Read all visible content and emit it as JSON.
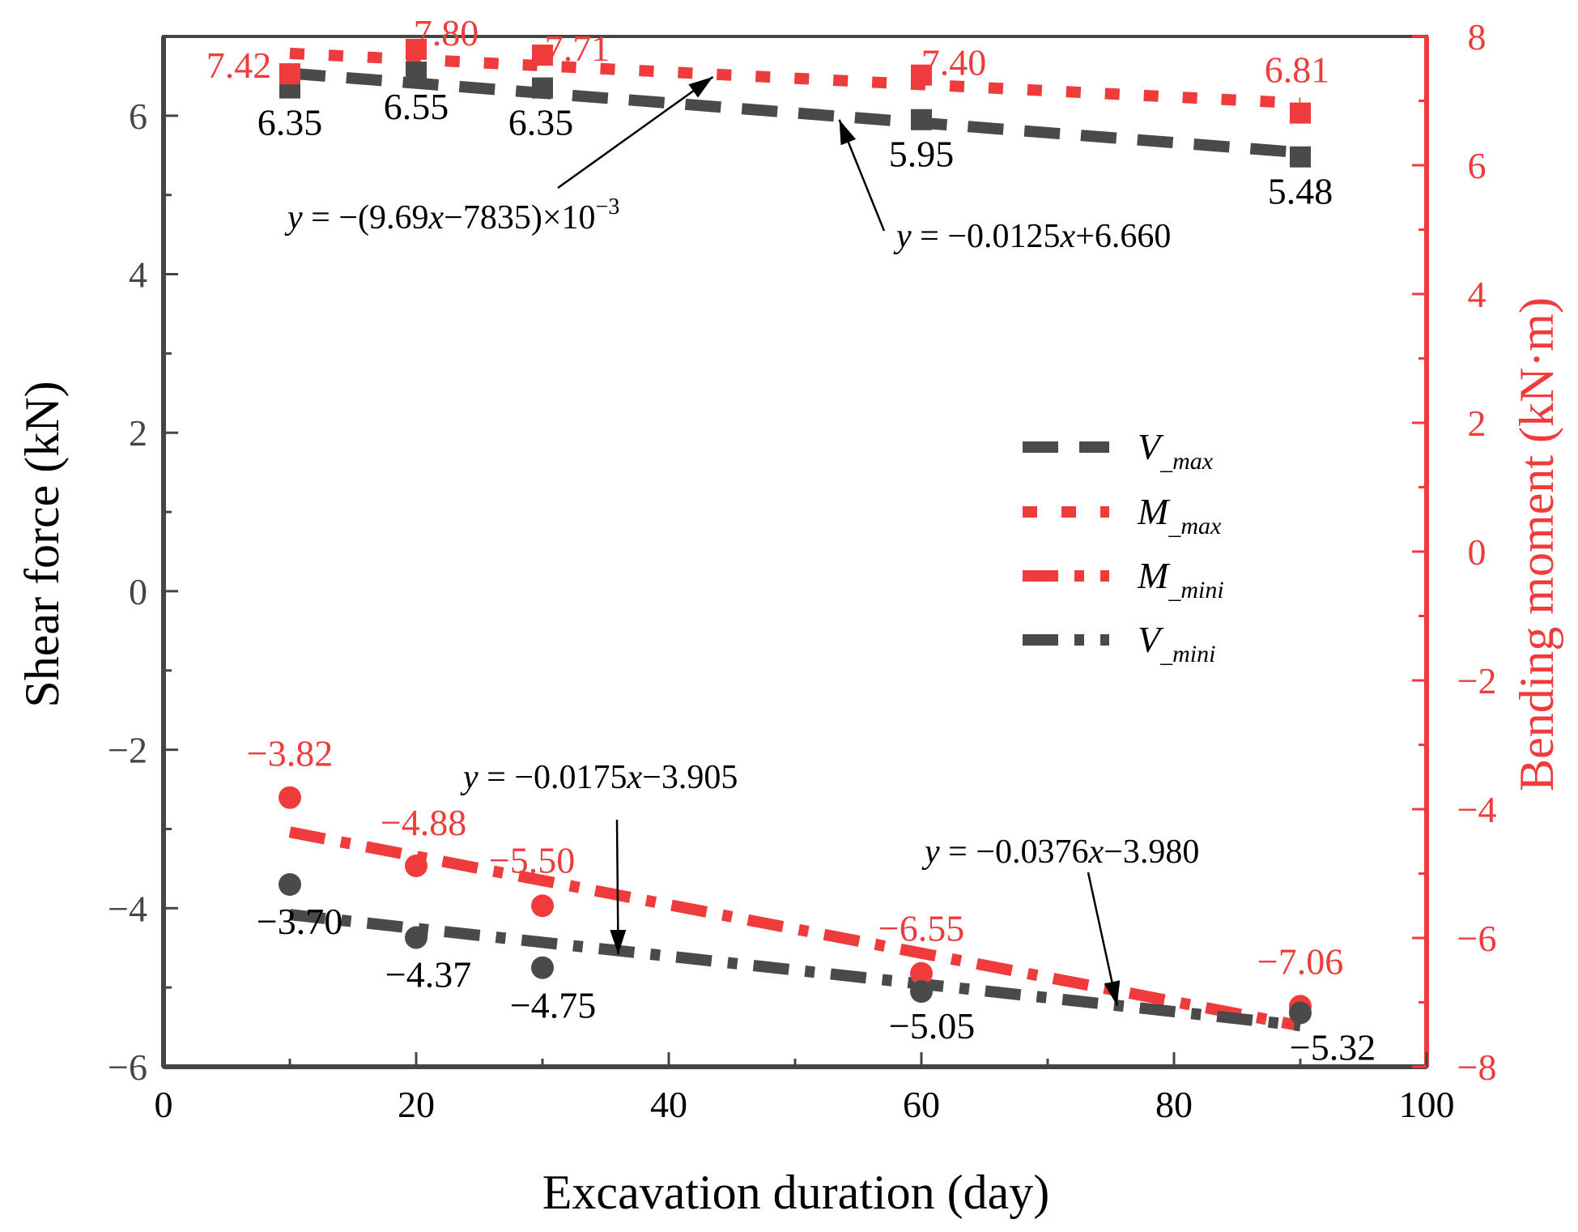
{
  "chart_data": {
    "type": "scatter",
    "xlabel": "Excavation duration (day)",
    "ylabel_left": "Shear force (kN)",
    "ylabel_right": "Bending moment (kN·m)",
    "xlim": [
      0,
      100
    ],
    "ylim_left": [
      -6,
      7
    ],
    "ylim_right": [
      -8,
      8
    ],
    "x_ticks": [
      "0",
      "20",
      "40",
      "60",
      "80",
      "100"
    ],
    "y_left_ticks": [
      "−6",
      "−4",
      "−2",
      "0",
      "2",
      "4",
      "6"
    ],
    "y_right_ticks": [
      "−8",
      "−6",
      "−4",
      "−2",
      "0",
      "2",
      "4",
      "6",
      "8"
    ],
    "grid": false,
    "legend_position": "center-right",
    "colors": {
      "dark": "#4a4a4a",
      "red": "#ef3b3b",
      "axis_dark": "#454545",
      "black": "#000000"
    },
    "series": [
      {
        "key": "V_max",
        "axis": "left",
        "marker": "square",
        "color": "#4a4a4a",
        "x": [
          10,
          20,
          30,
          60,
          90
        ],
        "y": [
          6.35,
          6.55,
          6.35,
          5.95,
          5.48
        ],
        "labels": [
          "6.35",
          "6.55",
          "6.35",
          "5.95",
          "5.48"
        ],
        "fit": {
          "slope": -0.0125,
          "intercept": 6.66,
          "x_range": [
            10,
            90
          ],
          "style": "dash"
        }
      },
      {
        "key": "M_max",
        "axis": "right",
        "marker": "square",
        "color": "#ef3b3b",
        "x": [
          10,
          20,
          30,
          60,
          90
        ],
        "y": [
          7.42,
          7.8,
          7.71,
          7.4,
          6.81
        ],
        "labels": [
          "7.42",
          "7.80",
          "7.71",
          "7.40",
          "6.81"
        ],
        "fit": {
          "slope": -0.00969,
          "intercept": 7.835,
          "x_range": [
            10,
            90
          ],
          "style": "dot"
        }
      },
      {
        "key": "M_mini",
        "axis": "right",
        "marker": "circle",
        "color": "#ef3b3b",
        "x": [
          10,
          20,
          30,
          60,
          90
        ],
        "y": [
          -3.82,
          -4.88,
          -5.5,
          -6.55,
          -7.06
        ],
        "labels": [
          "−3.82",
          "−4.88",
          "−5.50",
          "−6.55",
          "−7.06"
        ],
        "fit": {
          "slope": -0.0376,
          "intercept": -3.98,
          "x_range": [
            10,
            90
          ],
          "style": "dashdot"
        }
      },
      {
        "key": "V_mini",
        "axis": "left",
        "marker": "circle",
        "color": "#4a4a4a",
        "x": [
          10,
          20,
          30,
          60,
          90
        ],
        "y": [
          -3.7,
          -4.37,
          -4.75,
          -5.05,
          -5.32
        ],
        "labels": [
          "−3.70",
          "−4.37",
          "−4.75",
          "−5.05",
          "−5.32"
        ],
        "fit": {
          "slope": -0.0175,
          "intercept": -3.905,
          "x_range": [
            10,
            90
          ],
          "style": "dashdot"
        }
      }
    ],
    "legend": [
      {
        "main": "V",
        "sub": "_max",
        "style": "dash",
        "color": "#4a4a4a"
      },
      {
        "main": "M",
        "sub": "_max",
        "style": "dot",
        "color": "#ef3b3b"
      },
      {
        "main": "M",
        "sub": "_mini",
        "style": "dashdot",
        "color": "#ef3b3b"
      },
      {
        "main": "V",
        "sub": "_mini",
        "style": "dashdot",
        "color": "#4a4a4a"
      }
    ],
    "annotations": [
      {
        "text_parts": [
          "y",
          " = −(9.69",
          "x",
          "−7835)×10",
          "−3"
        ],
        "kind": "sci",
        "target_axis": "left",
        "target_data": [
          43.5,
          6.49
        ]
      },
      {
        "text_parts": [
          "y",
          " = −0.0125",
          "x",
          "+6.660"
        ],
        "kind": "plain",
        "target_axis": "left",
        "target_data": [
          53.5,
          5.95
        ]
      },
      {
        "text_parts": [
          "y",
          " = −0.0175",
          "x",
          "−3.905"
        ],
        "kind": "plain",
        "target_axis": "left",
        "target_data": [
          36,
          -4.58
        ]
      },
      {
        "text_parts": [
          "y",
          " = −0.0376",
          "x",
          "−3.980"
        ],
        "kind": "plain",
        "target_axis": "left",
        "target_data": [
          75.5,
          -5.23
        ]
      }
    ]
  }
}
